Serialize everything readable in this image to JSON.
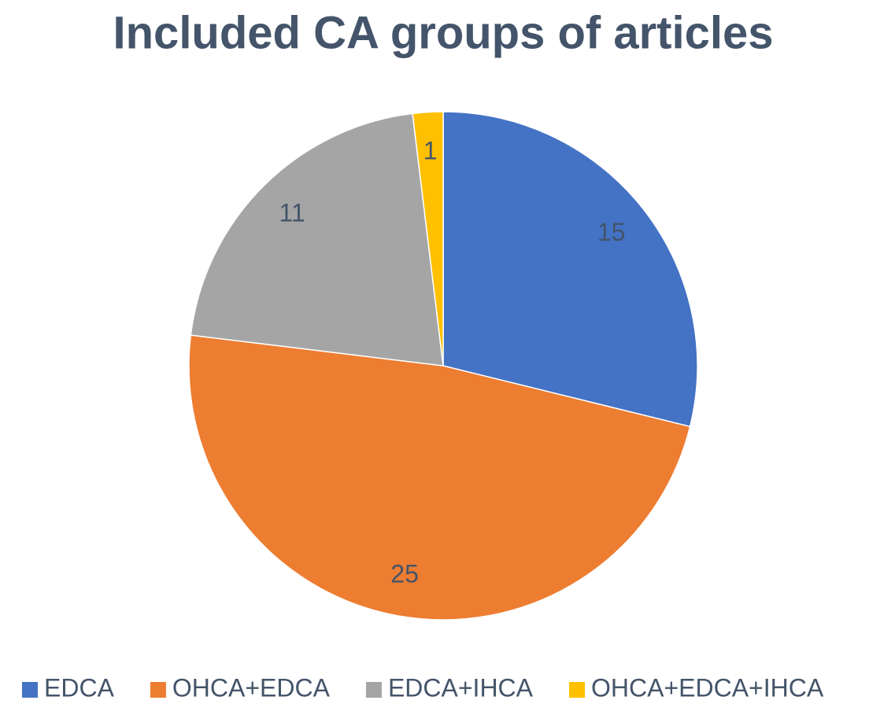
{
  "chart_data": {
    "type": "pie",
    "title": "Included CA groups of articles",
    "categories": [
      "EDCA",
      "OHCA+EDCA",
      "EDCA+IHCA",
      "OHCA+EDCA+IHCA"
    ],
    "values": [
      15,
      25,
      11,
      1
    ],
    "colors": [
      "#4472c4",
      "#ed7d31",
      "#a5a5a5",
      "#ffc000"
    ],
    "legend": "bottom"
  }
}
